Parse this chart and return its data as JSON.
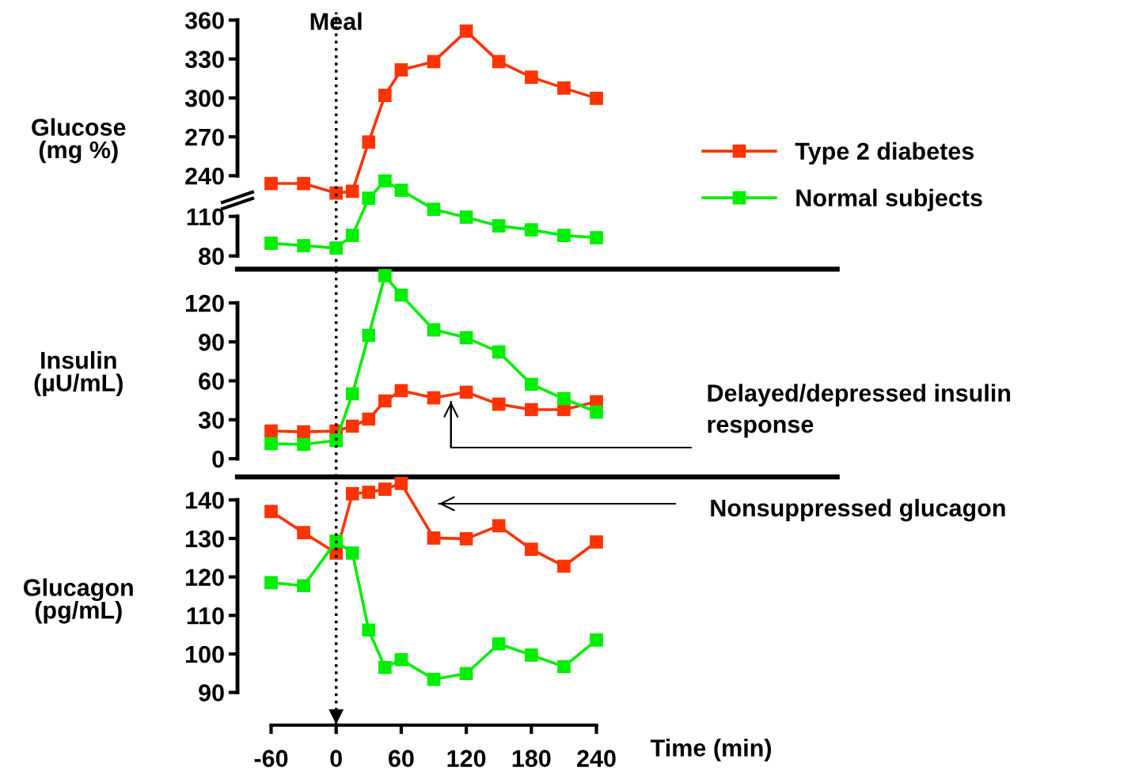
{
  "chart_data": [
    {
      "type": "line",
      "ylabel": "Glucose\n(mg %)",
      "x": [
        -60,
        -30,
        0,
        15,
        30,
        45,
        60,
        90,
        120,
        150,
        180,
        210,
        240
      ],
      "series": [
        {
          "name": "Type 2 diabetes",
          "color": "#ff3300",
          "values": [
            234,
            234,
            226.6,
            228,
            266,
            302,
            321.6,
            328,
            351.5,
            328,
            316,
            307.6,
            299.7
          ]
        },
        {
          "name": "Normal subjects",
          "color": "#00ee00",
          "axis": "y2",
          "values": [
            89.6,
            87.8,
            86,
            95.6,
            123.8,
            137,
            129.8,
            115.4,
            109.4,
            102.8,
            99.8,
            95.6,
            93.8
          ]
        }
      ],
      "xlim": [
        -91,
        462
      ],
      "ylim": [
        168,
        366
      ],
      "yticks": [
        240,
        270,
        300,
        330,
        360
      ],
      "y2lim": [
        70,
        265
      ],
      "y2ticks": [
        80,
        110
      ],
      "ref_lines": [
        {
          "axis": "x",
          "value": 0,
          "label": "Meal",
          "line_style": "dotted",
          "color": "#000000"
        }
      ],
      "legend": "right",
      "marker": "square",
      "line_style": "solid",
      "grid": false,
      "tick_labels": "y"
    },
    {
      "type": "line",
      "ylabel": "Insulin\n(µU/mL)",
      "x": [
        -60,
        -30,
        0,
        15,
        30,
        45,
        60,
        90,
        120,
        150,
        180,
        210,
        240
      ],
      "series": [
        {
          "color": "#ff3300",
          "values": [
            21.3,
            20.7,
            21.3,
            25,
            30.5,
            44.5,
            52.4,
            46.9,
            51.2,
            42,
            37.8,
            37.8,
            43.9
          ]
        },
        {
          "color": "#00ee00",
          "values": [
            11.6,
            11,
            14,
            50,
            95,
            141,
            126,
            99.3,
            93.2,
            82.2,
            57.3,
            46.3,
            35.9
          ]
        }
      ],
      "xlim": [
        -91,
        462
      ],
      "ylim": [
        -14,
        145
      ],
      "yticks": [
        0,
        30,
        60,
        90,
        120
      ],
      "ref_lines": [
        {
          "axis": "x",
          "value": 0,
          "line_style": "dotted",
          "color": "#000000"
        }
      ],
      "annotations": [
        "Delayed/depressed insulin\nresponse"
      ],
      "marker": "square",
      "line_style": "solid",
      "grid": false,
      "tick_labels": "y"
    },
    {
      "type": "line",
      "ylabel": "Glucagon\n(pg/mL)",
      "xlabel": "Time (min)",
      "x": [
        -60,
        -30,
        0,
        15,
        30,
        45,
        60,
        90,
        120,
        150,
        180,
        210,
        240
      ],
      "series": [
        {
          "color": "#ff3300",
          "values": [
            137,
            131.5,
            126.2,
            141.6,
            142,
            142.8,
            144.3,
            130.1,
            129.9,
            133.3,
            127.2,
            122.8,
            129.1
          ]
        },
        {
          "color": "#00ee00",
          "values": [
            118.5,
            117.7,
            129.3,
            126.2,
            106.2,
            96.5,
            98.5,
            93.4,
            94.9,
            102.6,
            99.7,
            96.7,
            103.6
          ]
        }
      ],
      "xlim": [
        -91,
        462
      ],
      "ylim": [
        81.5,
        146
      ],
      "xticks": [
        -60,
        0,
        60,
        120,
        180,
        240
      ],
      "yticks": [
        90,
        100,
        110,
        120,
        130,
        140
      ],
      "ref_lines": [
        {
          "axis": "x",
          "value": 0,
          "line_style": "dotted",
          "color": "#000000"
        }
      ],
      "annotations": [
        "Nonsuppressed glucagon"
      ],
      "marker": "square",
      "line_style": "solid",
      "grid": false
    }
  ]
}
